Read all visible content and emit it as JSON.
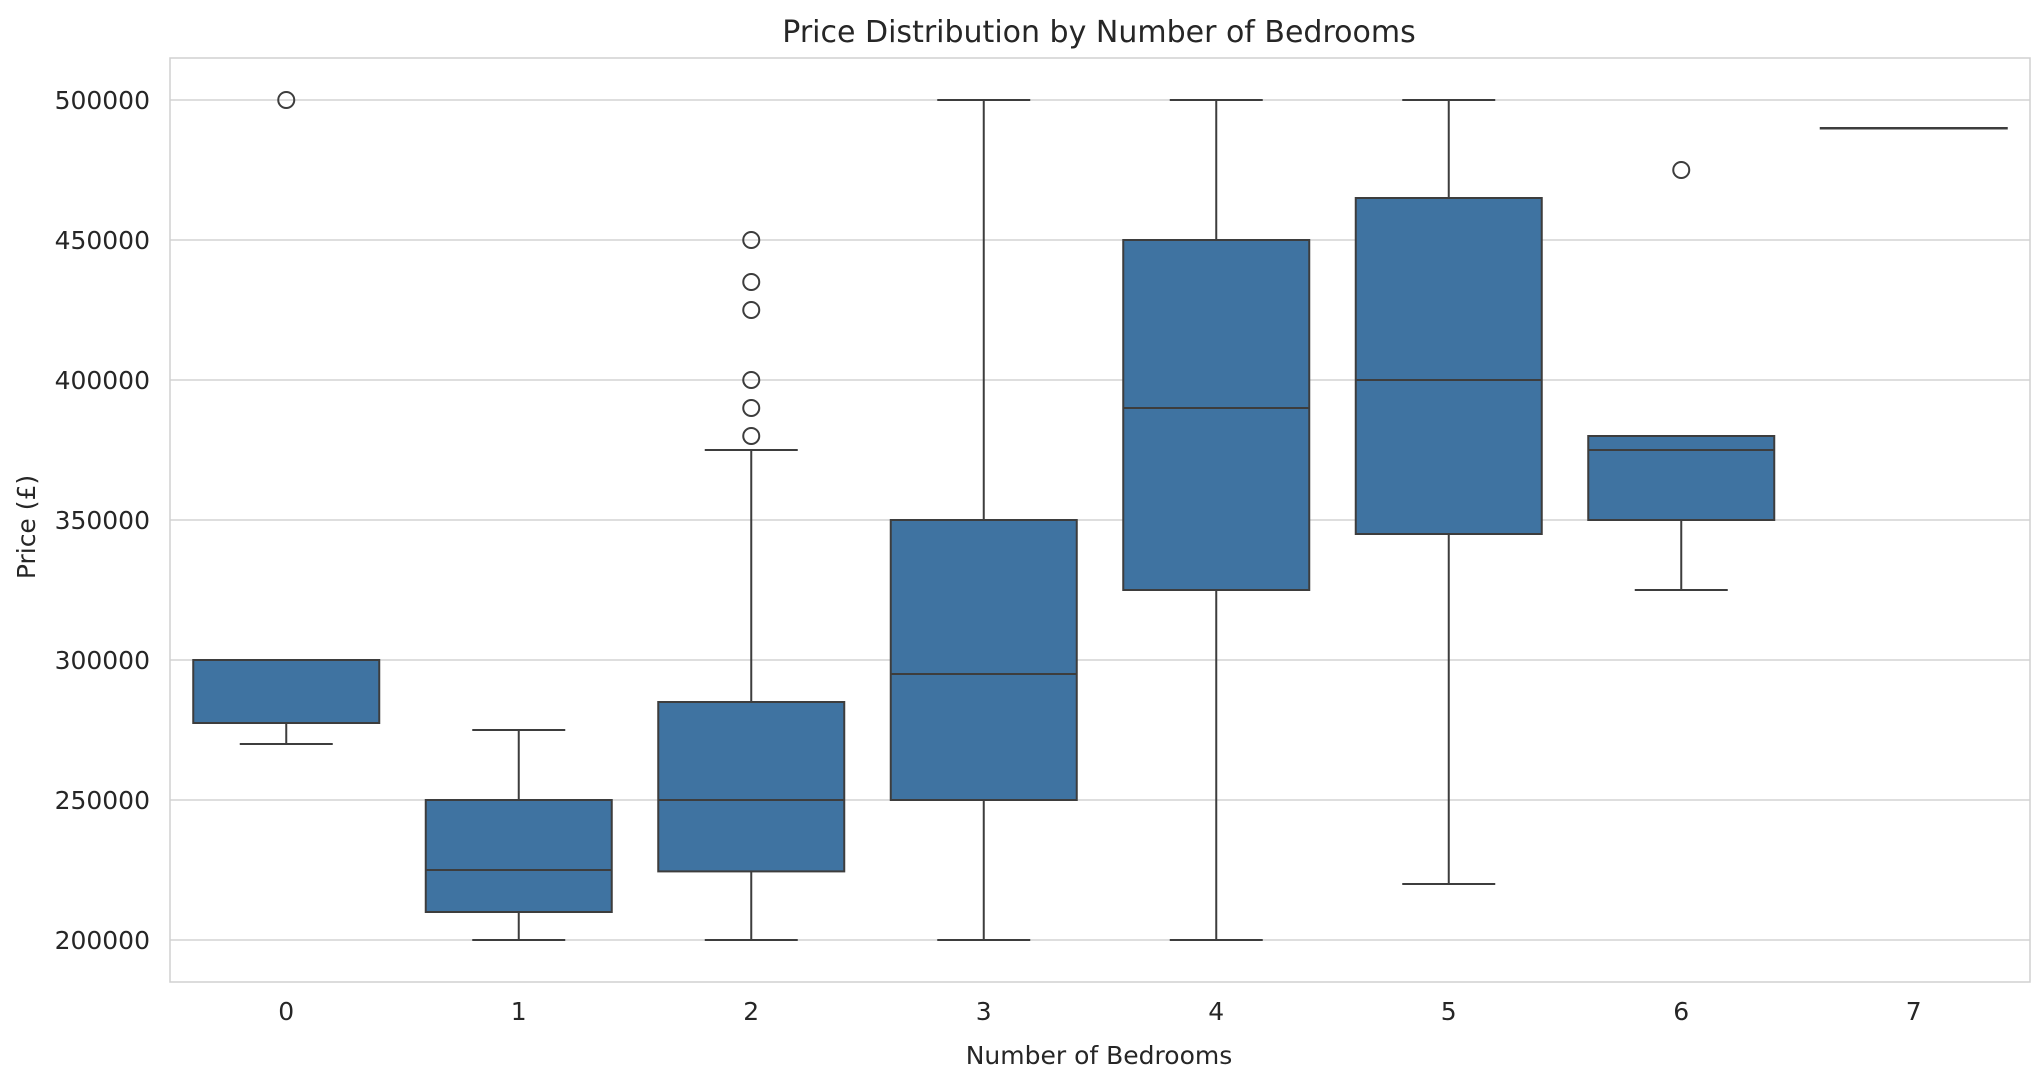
{
  "chart_data": {
    "type": "box",
    "title": "Price Distribution by Number of Bedrooms",
    "xlabel": "Number of Bedrooms",
    "ylabel": "Price (£)",
    "ylim": [
      185000,
      515000
    ],
    "yticks": [
      200000,
      250000,
      300000,
      350000,
      400000,
      450000,
      500000
    ],
    "grid": true,
    "legend": "none",
    "colors": {
      "box": "#3F73A1",
      "line": "#3d3d3d",
      "grid": "#d4d4d4",
      "frame": "#d0d0d0"
    },
    "categories": [
      "0",
      "1",
      "2",
      "3",
      "4",
      "5",
      "6",
      "7"
    ],
    "boxes": [
      {
        "category": "0",
        "whislo": 270000,
        "q1": 277500,
        "med": 300000,
        "q3": 300000,
        "whishi": 300000,
        "fliers": [
          500000
        ]
      },
      {
        "category": "1",
        "whislo": 200000,
        "q1": 210000,
        "med": 225000,
        "q3": 250000,
        "whishi": 275000,
        "fliers": []
      },
      {
        "category": "2",
        "whislo": 200000,
        "q1": 224500,
        "med": 250000,
        "q3": 285000,
        "whishi": 375000,
        "fliers": [
          380000,
          390000,
          400000,
          425000,
          435000,
          450000
        ]
      },
      {
        "category": "3",
        "whislo": 200000,
        "q1": 250000,
        "med": 295000,
        "q3": 350000,
        "whishi": 500000,
        "fliers": []
      },
      {
        "category": "4",
        "whislo": 200000,
        "q1": 325000,
        "med": 390000,
        "q3": 450000,
        "whishi": 500000,
        "fliers": []
      },
      {
        "category": "5",
        "whislo": 220000,
        "q1": 345000,
        "med": 400000,
        "q3": 465000,
        "whishi": 500000,
        "fliers": []
      },
      {
        "category": "6",
        "whislo": 325000,
        "q1": 350000,
        "med": 375000,
        "q3": 380000,
        "whishi": 380000,
        "fliers": [
          475000
        ]
      },
      {
        "category": "7",
        "whislo": 490000,
        "q1": 490000,
        "med": 490000,
        "q3": 490000,
        "whishi": 490000,
        "fliers": []
      }
    ]
  }
}
